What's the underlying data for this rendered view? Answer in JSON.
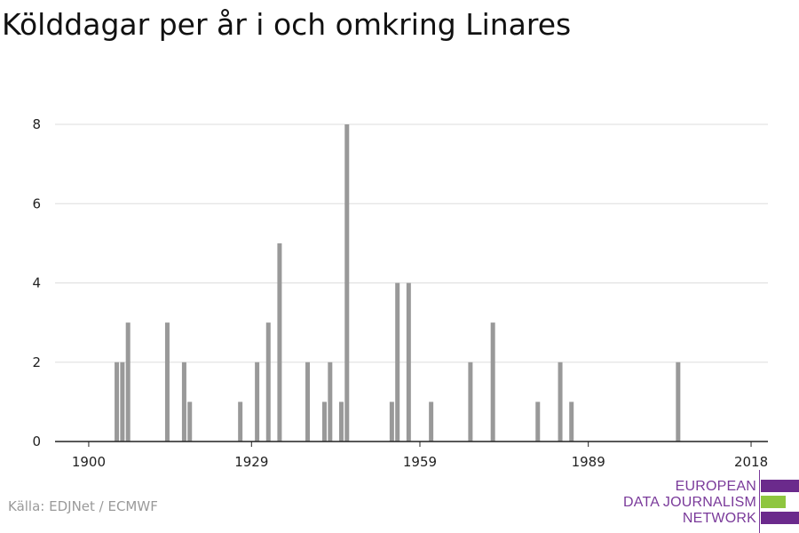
{
  "chart_data": {
    "type": "bar",
    "title": "Kölddagar per år i och omkring Linares",
    "xlabel": "",
    "ylabel": "",
    "xlim": [
      1894,
      2021
    ],
    "ylim": [
      0,
      8
    ],
    "yticks": [
      0,
      2,
      4,
      6,
      8
    ],
    "xticks": [
      1900,
      1929,
      1959,
      1989,
      2018
    ],
    "grid": true,
    "bar_color": "#999999",
    "grid_color": "#dddddd",
    "series": [
      {
        "x": [
          1905,
          1906,
          1907,
          1914,
          1917,
          1918,
          1927,
          1930,
          1932,
          1934,
          1939,
          1942,
          1943,
          1945,
          1946,
          1954,
          1955,
          1957,
          1961,
          1968,
          1972,
          1980,
          1984,
          1986,
          2005
        ],
        "values": [
          2,
          2,
          3,
          3,
          2,
          1,
          1,
          2,
          3,
          5,
          2,
          1,
          2,
          1,
          8,
          1,
          4,
          4,
          1,
          2,
          3,
          1,
          2,
          1,
          2
        ]
      }
    ]
  },
  "source": "Källa: EDJNet / ECMWF",
  "logo": {
    "line1": "EUROPEAN",
    "line2": "DATA JOURNALISM",
    "line3": "NETWORK"
  }
}
